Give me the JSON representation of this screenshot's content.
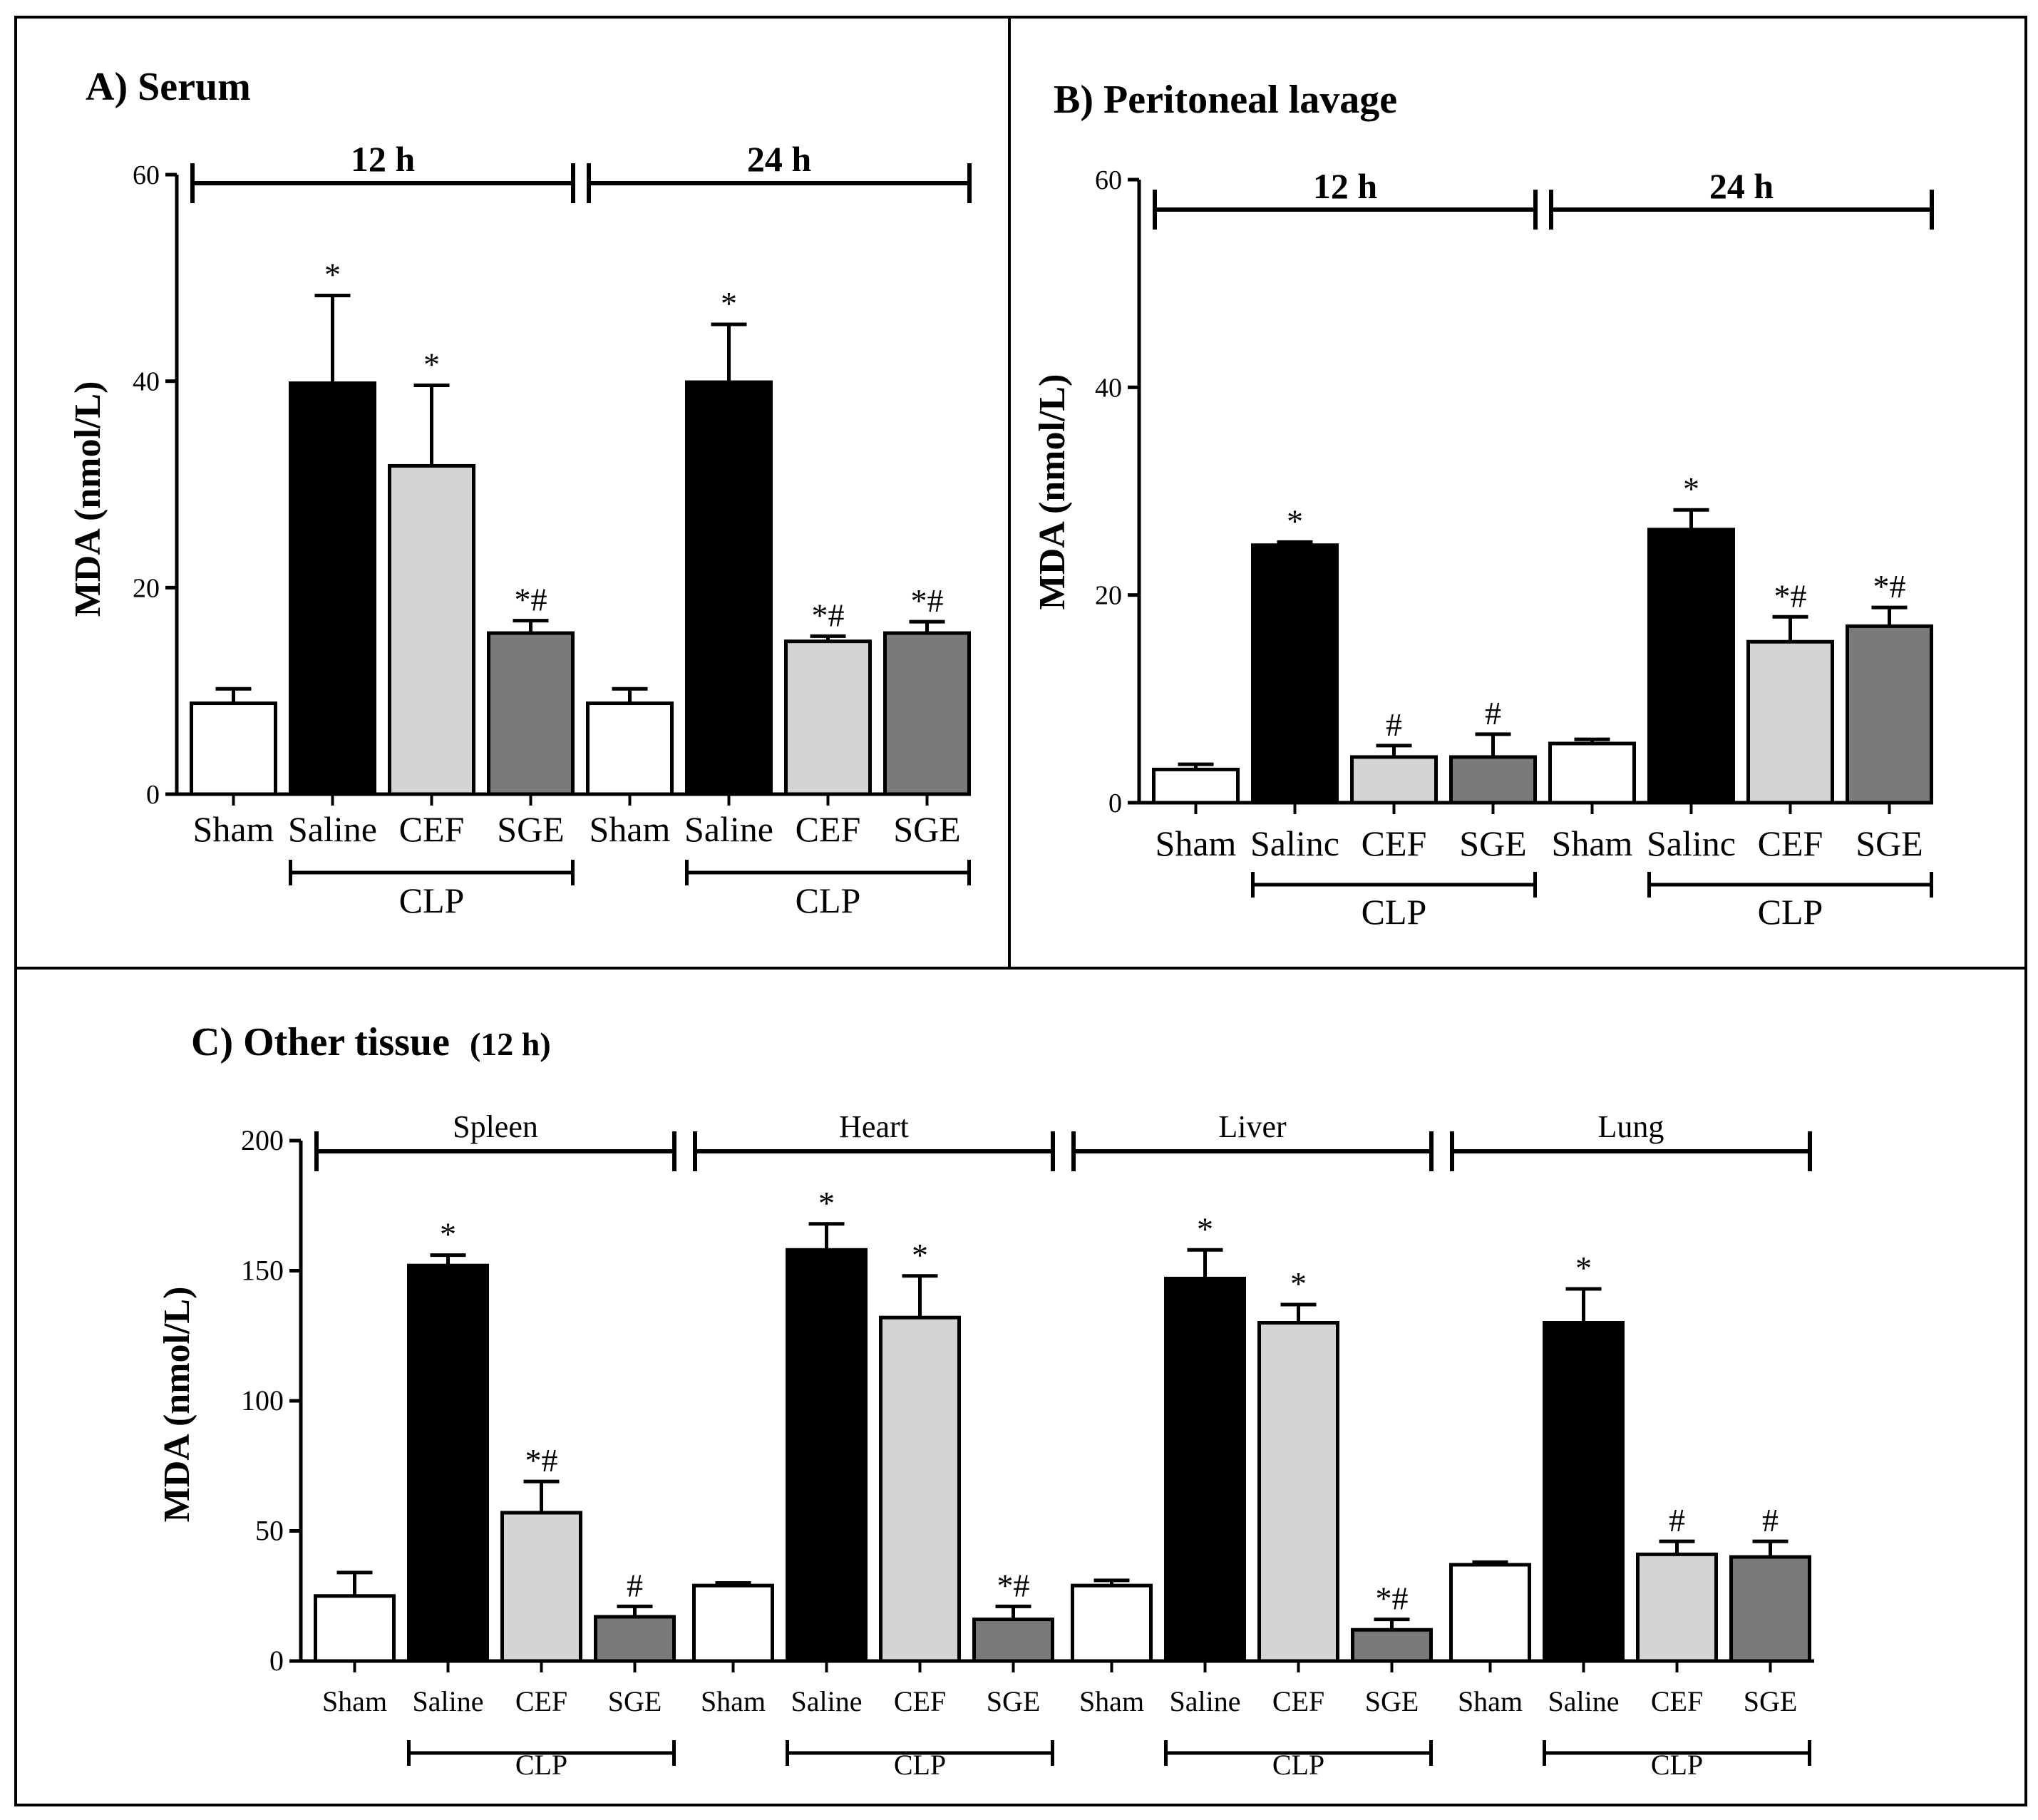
{
  "colors": {
    "Sham": "#ffffff",
    "Saline": "#000000",
    "CEF": "#d4d4d4",
    "SGE": "#7a7a7a",
    "axis": "#000000"
  },
  "chart_data": [
    {
      "type": "bar",
      "title": "A) Serum",
      "ylabel": "MDA (nmol/L)",
      "ylim": [
        0,
        60
      ],
      "yticks": [
        0,
        20,
        40,
        60
      ],
      "group_label": "CLP",
      "segments": [
        {
          "label": "12 h",
          "groups": [
            "Sham",
            "Saline",
            "CEF",
            "SGE"
          ],
          "values": [
            8.8,
            39.8,
            31.8,
            15.6
          ],
          "errors": [
            1.4,
            8.5,
            7.8,
            1.2
          ],
          "annotations": [
            "",
            "*",
            "*",
            "*#"
          ]
        },
        {
          "label": "24 h",
          "groups": [
            "Sham",
            "Saline",
            "CEF",
            "SGE"
          ],
          "values": [
            8.8,
            39.9,
            14.8,
            15.6
          ],
          "errors": [
            1.4,
            5.6,
            0.5,
            1.1
          ],
          "annotations": [
            "",
            "*",
            "*#",
            "*#"
          ]
        }
      ]
    },
    {
      "type": "bar",
      "title": "B) Peritoneal lavage",
      "ylabel": "MDA (nmol/L)",
      "ylim": [
        0,
        60
      ],
      "yticks": [
        0,
        20,
        40,
        60
      ],
      "group_label": "CLP",
      "segments": [
        {
          "label": "12 h",
          "groups": [
            "Sham",
            "Salinc",
            "CEF",
            "SGE"
          ],
          "values": [
            3.2,
            24.8,
            4.4,
            4.4
          ],
          "errors": [
            0.5,
            0.3,
            1.1,
            2.2
          ],
          "annotations": [
            "",
            "*",
            "#",
            "#"
          ]
        },
        {
          "label": "24 h",
          "groups": [
            "Sham",
            "Salinc",
            "CEF",
            "SGE"
          ],
          "values": [
            5.7,
            26.3,
            15.5,
            17.0
          ],
          "errors": [
            0.4,
            1.9,
            2.4,
            1.8
          ],
          "annotations": [
            "",
            "*",
            "*#",
            "*#"
          ]
        }
      ]
    },
    {
      "type": "bar",
      "title": "C) Other tissue",
      "title_suffix": "(12 h)",
      "ylabel": "MDA (nmol/L)",
      "ylim": [
        0,
        200
      ],
      "yticks": [
        0,
        50,
        100,
        150,
        200
      ],
      "group_label": "CLP",
      "segments": [
        {
          "label": "Spleen",
          "groups": [
            "Sham",
            "Saline",
            "CEF",
            "SGE"
          ],
          "values": [
            25,
            152,
            57,
            17
          ],
          "errors": [
            9,
            4,
            12,
            4
          ],
          "annotations": [
            "",
            "*",
            "*#",
            "#"
          ]
        },
        {
          "label": "Heart",
          "groups": [
            "Sham",
            "Saline",
            "CEF",
            "SGE"
          ],
          "values": [
            29,
            158,
            132,
            16
          ],
          "errors": [
            1,
            10,
            16,
            5
          ],
          "annotations": [
            "",
            "*",
            "*",
            "*#"
          ]
        },
        {
          "label": "Liver",
          "groups": [
            "Sham",
            "Saline",
            "CEF",
            "SGE"
          ],
          "values": [
            29,
            147,
            130,
            12
          ],
          "errors": [
            2,
            11,
            7,
            4
          ],
          "annotations": [
            "",
            "*",
            "*",
            "*#"
          ]
        },
        {
          "label": "Lung",
          "groups": [
            "Sham",
            "Saline",
            "CEF",
            "SGE"
          ],
          "values": [
            37,
            130,
            41,
            40
          ],
          "errors": [
            1,
            13,
            5,
            6
          ],
          "annotations": [
            "",
            "*",
            "#",
            "#"
          ]
        }
      ]
    }
  ]
}
